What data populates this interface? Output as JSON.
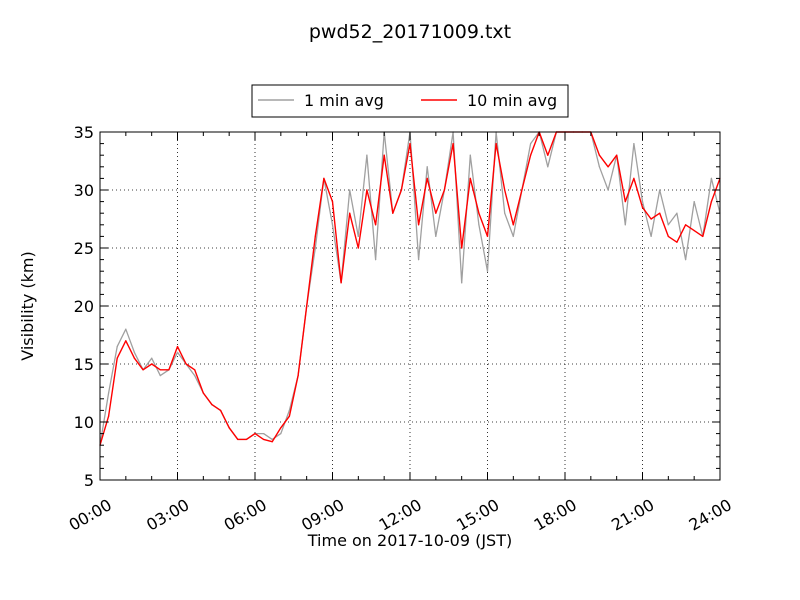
{
  "chart_data": {
    "type": "line",
    "title": "pwd52_20171009.txt",
    "xlabel": "Time on 2017-10-09 (JST)",
    "ylabel": "Visibility (km)",
    "xlim": [
      "00:00",
      "24:00"
    ],
    "ylim": [
      5,
      35
    ],
    "grid": true,
    "legend_position": "top-center",
    "x_tick_labels": [
      "00:00",
      "03:00",
      "06:00",
      "09:00",
      "12:00",
      "15:00",
      "18:00",
      "21:00",
      "24:00"
    ],
    "y_tick_labels": [
      "5",
      "10",
      "15",
      "20",
      "25",
      "30",
      "35"
    ],
    "series": [
      {
        "name": "1 min avg",
        "color": "#a0a0a0",
        "x": [
          "00:00",
          "00:20",
          "00:40",
          "01:00",
          "01:20",
          "01:40",
          "02:00",
          "02:20",
          "02:40",
          "03:00",
          "03:20",
          "03:40",
          "04:00",
          "04:20",
          "04:40",
          "05:00",
          "05:20",
          "05:40",
          "06:00",
          "06:20",
          "06:40",
          "07:00",
          "07:20",
          "07:40",
          "08:00",
          "08:20",
          "08:40",
          "09:00",
          "09:20",
          "09:40",
          "10:00",
          "10:20",
          "10:40",
          "11:00",
          "11:20",
          "11:40",
          "12:00",
          "12:20",
          "12:40",
          "13:00",
          "13:20",
          "13:40",
          "14:00",
          "14:20",
          "14:40",
          "15:00",
          "15:20",
          "15:40",
          "16:00",
          "16:20",
          "16:40",
          "17:00",
          "17:20",
          "17:40",
          "18:00",
          "18:20",
          "18:40",
          "19:00",
          "19:20",
          "19:40",
          "20:00",
          "20:20",
          "20:40",
          "21:00",
          "21:20",
          "21:40",
          "22:00",
          "22:20",
          "22:40",
          "23:00",
          "23:20",
          "23:40",
          "24:00"
        ],
        "y": [
          8,
          12.5,
          16.5,
          18,
          16,
          14.5,
          15.5,
          14,
          14.5,
          16,
          15,
          14,
          12.5,
          11.5,
          11,
          9.5,
          8.5,
          8.5,
          9,
          9,
          8.5,
          9,
          11,
          14,
          20,
          25,
          31,
          27,
          22,
          30,
          26,
          33,
          24,
          35,
          28,
          30,
          35,
          24,
          32,
          26,
          30,
          35,
          22,
          33,
          27,
          23,
          35,
          28,
          26,
          30,
          34,
          35,
          32,
          35,
          35,
          35,
          35,
          35,
          32,
          30,
          33,
          27,
          34,
          29,
          26,
          30,
          27,
          28,
          24,
          29,
          26,
          31,
          28
        ]
      },
      {
        "name": "10 min avg",
        "color": "#ff0000",
        "x": [
          "00:00",
          "00:20",
          "00:40",
          "01:00",
          "01:20",
          "01:40",
          "02:00",
          "02:20",
          "02:40",
          "03:00",
          "03:20",
          "03:40",
          "04:00",
          "04:20",
          "04:40",
          "05:00",
          "05:20",
          "05:40",
          "06:00",
          "06:20",
          "06:40",
          "07:00",
          "07:20",
          "07:40",
          "08:00",
          "08:20",
          "08:40",
          "09:00",
          "09:20",
          "09:40",
          "10:00",
          "10:20",
          "10:40",
          "11:00",
          "11:20",
          "11:40",
          "12:00",
          "12:20",
          "12:40",
          "13:00",
          "13:20",
          "13:40",
          "14:00",
          "14:20",
          "14:40",
          "15:00",
          "15:20",
          "15:40",
          "16:00",
          "16:20",
          "16:40",
          "17:00",
          "17:20",
          "17:40",
          "18:00",
          "18:20",
          "18:40",
          "19:00",
          "19:20",
          "19:40",
          "20:00",
          "20:20",
          "20:40",
          "21:00",
          "21:20",
          "21:40",
          "22:00",
          "22:20",
          "22:40",
          "23:00",
          "23:20",
          "23:40",
          "24:00"
        ],
        "y": [
          8,
          10.5,
          15.5,
          17,
          15.5,
          14.5,
          15,
          14.5,
          14.5,
          16.5,
          15,
          14.5,
          12.5,
          11.5,
          11,
          9.5,
          8.5,
          8.5,
          9,
          8.5,
          8.3,
          9.5,
          10.5,
          14,
          20,
          26,
          31,
          29,
          22,
          28,
          25,
          30,
          27,
          33,
          28,
          30,
          34,
          27,
          31,
          28,
          30,
          34,
          25,
          31,
          28,
          26,
          34,
          30,
          27,
          30,
          33,
          35,
          33,
          35,
          35,
          35,
          35,
          35,
          33,
          32,
          33,
          29,
          31,
          28.5,
          27.5,
          28,
          26,
          25.5,
          27,
          26.5,
          26,
          29,
          31
        ]
      }
    ]
  }
}
